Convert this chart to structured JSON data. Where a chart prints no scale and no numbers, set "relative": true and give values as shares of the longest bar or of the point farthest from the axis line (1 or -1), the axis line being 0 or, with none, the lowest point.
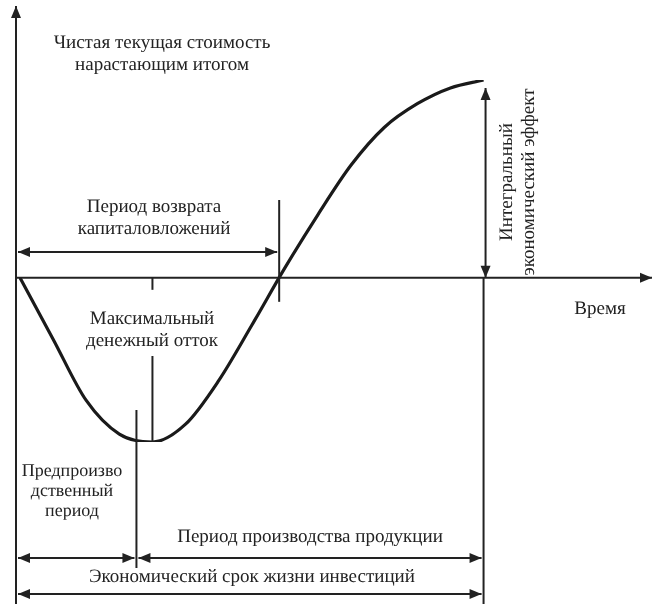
{
  "chart_data": {
    "type": "line",
    "relative": true,
    "xlabel": "Время",
    "ylabel": "Чистая текущая стоимость нарастающим итогом",
    "categories": [
      null,
      null,
      null,
      null,
      null,
      null,
      null,
      null,
      null,
      null,
      null,
      null,
      null,
      null,
      null,
      null,
      null,
      null,
      null
    ],
    "series": [
      {
        "color": "#1a1a1a",
        "values": [
          0,
          -0.31,
          -0.62,
          -0.79,
          -0.83,
          -0.74,
          -0.52,
          -0.24,
          0.05,
          0.32,
          0.57,
          0.76,
          0.88,
          0.96,
          1,
          null,
          null,
          null,
          null
        ]
      }
    ],
    "annotations": [
      "Период возврата капиталовложений",
      "Максимальный денежный отток",
      "Интегральный экономический эффект",
      "Предпроизводственный период",
      "Период производства продукции",
      "Экономический срок жизни инвестиций"
    ]
  }
}
